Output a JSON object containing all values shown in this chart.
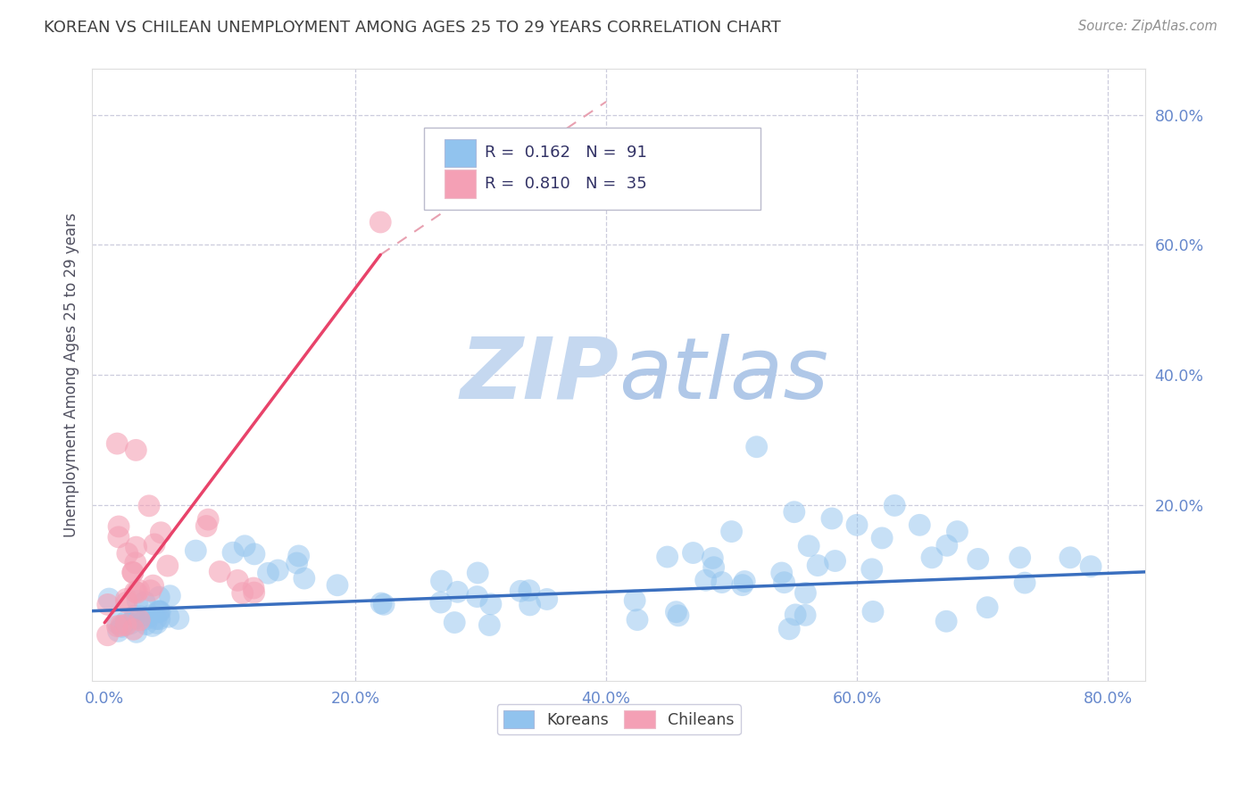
{
  "title": "KOREAN VS CHILEAN UNEMPLOYMENT AMONG AGES 25 TO 29 YEARS CORRELATION CHART",
  "source": "Source: ZipAtlas.com",
  "ylabel": "Unemployment Among Ages 25 to 29 years",
  "xlim": [
    -0.01,
    0.83
  ],
  "ylim": [
    -0.07,
    0.87
  ],
  "xticks": [
    0.0,
    0.2,
    0.4,
    0.6,
    0.8
  ],
  "yticks": [
    0.0,
    0.2,
    0.4,
    0.6,
    0.8
  ],
  "xticklabels": [
    "0.0%",
    "20.0%",
    "40.0%",
    "60.0%",
    "80.0%"
  ],
  "yticklabels": [
    "",
    "20.0%",
    "40.0%",
    "60.0%",
    "80.0%"
  ],
  "korean_R": 0.162,
  "korean_N": 91,
  "chilean_R": 0.81,
  "chilean_N": 35,
  "korean_color": "#91C3EE",
  "chilean_color": "#F4A0B5",
  "korean_line_color": "#3A6FBF",
  "chilean_line_color": "#E8436A",
  "chilean_dash_color": "#E8A0B0",
  "watermark_zip_color": "#C5D8F0",
  "watermark_atlas_color": "#B0C8E8",
  "background_color": "#FFFFFF",
  "grid_color": "#CCCCDD",
  "title_color": "#404040",
  "source_color": "#909090",
  "legend_label_color": "#333366",
  "legend_N_color": "#E05010",
  "tick_color": "#6688CC"
}
